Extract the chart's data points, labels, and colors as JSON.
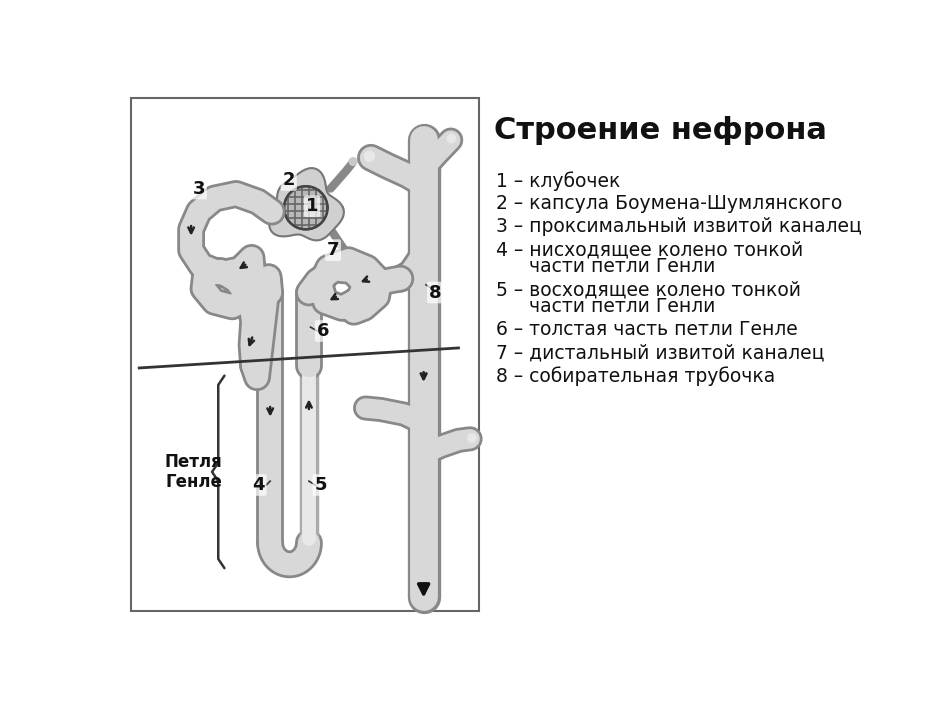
{
  "title": "Строение нефрона",
  "title_fontsize": 22,
  "title_fontweight": "bold",
  "legend_items": [
    "1 – клубочек",
    "2 – капсула Боумена-Шумлянского",
    "3 – проксимальный извитой каналец",
    "4 – нисходящее колено тонкой\n    части петли Генли",
    "5 – восходящее колено тонкой\n    части петли Генли",
    "6 – толстая часть петли Генле",
    "7 – дистальный извитой каналец",
    "8 – собирательная трубочка"
  ],
  "legend_fontsize": 13.5,
  "petlya_label": "Петля\nГенле",
  "bg": "#ffffff",
  "lc": "#d8d8d8",
  "dc": "#888888",
  "lc2": "#e8e8e8",
  "box_bg": "#ffffff"
}
